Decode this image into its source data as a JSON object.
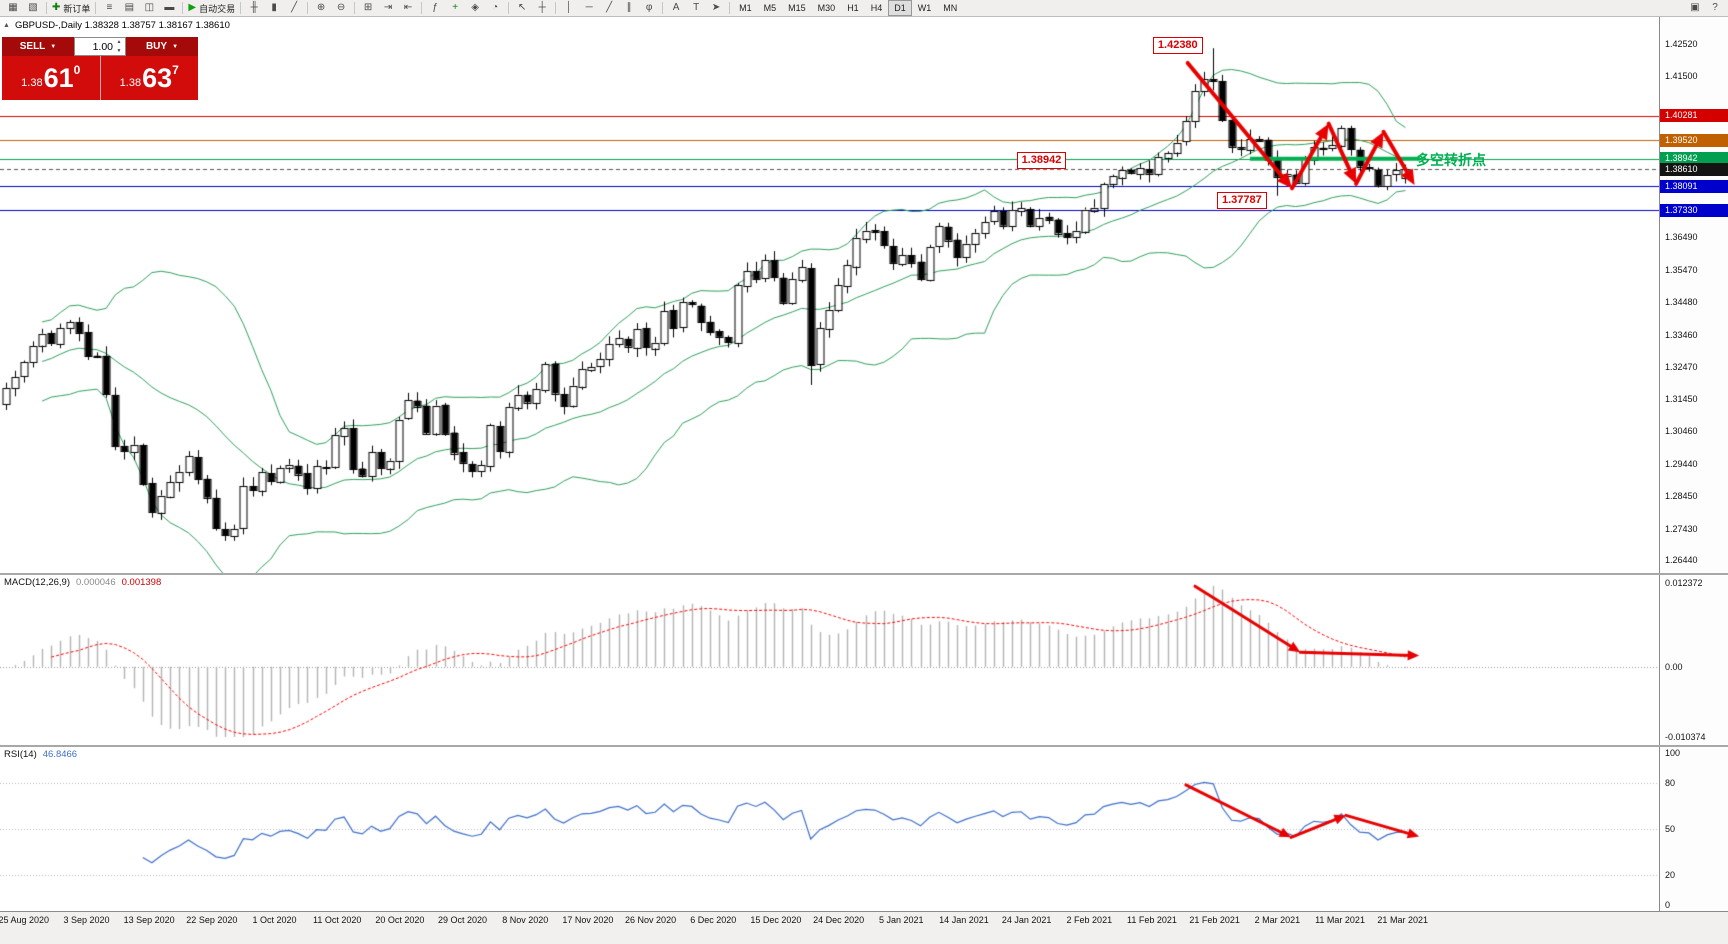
{
  "toolbar": {
    "groups": [
      {
        "items": [
          {
            "name": "new-chart-icon",
            "glyph": "▦"
          },
          {
            "name": "chart-profiles-icon",
            "glyph": "▧"
          }
        ]
      },
      {
        "items": [
          {
            "name": "new-order-button",
            "glyph": "✚",
            "glyph_color": "#118011",
            "label": "新订单"
          }
        ]
      },
      {
        "items": [
          {
            "name": "market-watch-icon",
            "glyph": "≡"
          },
          {
            "name": "data-window-icon",
            "glyph": "▤"
          },
          {
            "name": "navigator-icon",
            "glyph": "◫"
          },
          {
            "name": "terminal-icon",
            "glyph": "▬"
          }
        ]
      },
      {
        "items": [
          {
            "name": "autotrading-button",
            "glyph": "▶",
            "glyph_color": "#12A012",
            "label": "自动交易"
          }
        ]
      },
      {
        "items": [
          {
            "name": "bar-chart-icon",
            "glyph": "╫"
          },
          {
            "name": "candlestick-chart-icon",
            "glyph": "▮"
          },
          {
            "name": "line-chart-icon",
            "glyph": "╱"
          }
        ]
      },
      {
        "items": [
          {
            "name": "zoom-in-icon",
            "glyph": "⊕"
          },
          {
            "name": "zoom-out-icon",
            "glyph": "⊖"
          }
        ]
      },
      {
        "items": [
          {
            "name": "tile-windows-icon",
            "glyph": "⊞"
          },
          {
            "name": "auto-scroll-icon",
            "glyph": "⇥"
          },
          {
            "name": "chart-shift-icon",
            "glyph": "⇤"
          }
        ]
      },
      {
        "items": [
          {
            "name": "indicators-icon",
            "glyph": "ƒ"
          },
          {
            "name": "add-indicator-icon",
            "glyph": "+",
            "glyph_color": "#118011"
          },
          {
            "name": "templates-icon",
            "glyph": "◈"
          },
          {
            "name": "periods-icon",
            "glyph": "◔"
          }
        ]
      },
      {
        "items": [
          {
            "name": "cursor-icon",
            "glyph": "↖"
          },
          {
            "name": "crosshair-icon",
            "glyph": "┼"
          }
        ]
      },
      {
        "items": [
          {
            "name": "vertical-line-icon",
            "glyph": "│"
          },
          {
            "name": "horizontal-line-icon",
            "glyph": "─"
          },
          {
            "name": "trendline-icon",
            "glyph": "╱"
          },
          {
            "name": "equidistant-channel-icon",
            "glyph": "∥"
          },
          {
            "name": "fibonacci-icon",
            "glyph": "φ"
          }
        ]
      },
      {
        "items": [
          {
            "name": "text-icon",
            "glyph": "A"
          },
          {
            "name": "text-label-icon",
            "glyph": "T"
          },
          {
            "name": "arrow-objects-icon",
            "glyph": "➤"
          }
        ]
      }
    ],
    "timeframes": [
      {
        "label": "M1"
      },
      {
        "label": "M5"
      },
      {
        "label": "M15"
      },
      {
        "label": "M30"
      },
      {
        "label": "H1"
      },
      {
        "label": "H4"
      },
      {
        "label": "D1",
        "active": true
      },
      {
        "label": "W1"
      },
      {
        "label": "MN"
      }
    ],
    "right_icons": [
      {
        "name": "chart-window-icon",
        "glyph": "▣"
      },
      {
        "name": "help-icon",
        "glyph": "?"
      }
    ]
  },
  "trade_widget": {
    "sell_label": "SELL",
    "buy_label": "BUY",
    "volume": "1.00",
    "sell_price_small": "1.38",
    "sell_price_big": "61",
    "sell_price_sup": "0",
    "buy_price_small": "1.38",
    "buy_price_big": "63",
    "buy_price_sup": "7"
  },
  "chart_data": {
    "type": "candlestick",
    "symbol": "GBPUSD-",
    "timeframe": "Daily",
    "info_line": "GBPUSD-,Daily  1.38328 1.38757 1.38167 1.38610",
    "current": {
      "open": "1.38328",
      "high": "1.38757",
      "low": "1.38167",
      "close": "1.38610"
    },
    "closes": [
      1.318,
      1.3215,
      1.326,
      1.331,
      1.335,
      1.332,
      1.3367,
      1.3385,
      1.3352,
      1.328,
      1.3279,
      1.3162,
      1.3,
      1.2984,
      1.3004,
      1.2882,
      1.2795,
      1.2846,
      1.2888,
      1.292,
      1.2968,
      1.2896,
      1.284,
      1.2745,
      1.2722,
      1.2742,
      1.2876,
      1.2862,
      1.292,
      1.289,
      1.2932,
      1.2942,
      1.2912,
      1.2868,
      1.2938,
      1.2932,
      1.3034,
      1.3056,
      1.2928,
      1.2908,
      1.298,
      1.2932,
      1.2955,
      1.3082,
      1.3142,
      1.3124,
      1.304,
      1.3126,
      1.3038,
      1.2978,
      1.2948,
      1.2922,
      1.294,
      1.3064,
      1.2984,
      1.3122,
      1.316,
      1.3136,
      1.3178,
      1.3254,
      1.3164,
      1.3124,
      1.3188,
      1.324,
      1.3246,
      1.327,
      1.3318,
      1.3336,
      1.331,
      1.3364,
      1.3308,
      1.3322,
      1.342,
      1.3366,
      1.3448,
      1.344,
      1.3386,
      1.3354,
      1.334,
      1.3322,
      1.35,
      1.3544,
      1.352,
      1.3578,
      1.3524,
      1.3446,
      1.352,
      1.3556,
      1.3252,
      1.3366,
      1.3424,
      1.35,
      1.3562,
      1.3648,
      1.367,
      1.3664,
      1.3624,
      1.357,
      1.3594,
      1.357,
      1.352,
      1.3618,
      1.3684,
      1.364,
      1.3588,
      1.363,
      1.3664,
      1.3696,
      1.373,
      1.3686,
      1.3734,
      1.374,
      1.3686,
      1.371,
      1.3704,
      1.3662,
      1.365,
      1.367,
      1.3736,
      1.3742,
      1.3814,
      1.384,
      1.386,
      1.385,
      1.3866,
      1.3848,
      1.39,
      1.3912,
      1.3944,
      1.401,
      1.4105,
      1.4142,
      1.4136,
      1.4014,
      1.3932,
      1.3925,
      1.3956,
      1.395,
      1.389,
      1.3838,
      1.3846,
      1.382,
      1.3892,
      1.393,
      1.3924,
      1.3936,
      1.399,
      1.3924,
      1.387,
      1.3864,
      1.381,
      1.3842,
      1.3858,
      1.3861
    ],
    "wick_seed": 11,
    "overrides": {
      "24": {
        "low": 1.2705
      },
      "88": {
        "low": 1.319
      },
      "132": {
        "high": 1.4238
      },
      "139": {
        "low": 1.37787
      },
      "153": {
        "open": 1.38328,
        "high": 1.38757,
        "low": 1.38167,
        "close": 1.3861
      }
    },
    "price_axis": {
      "top": 1.4335,
      "bottom": 1.2605,
      "plain_ticks": [
        "1.42520",
        "1.41500",
        "1.36490",
        "1.35470",
        "1.34480",
        "1.33460",
        "1.32470",
        "1.31450",
        "1.30460",
        "1.29440",
        "1.28450",
        "1.27430",
        "1.26440"
      ]
    },
    "levels": [
      {
        "price": 1.40281,
        "text": "1.40281",
        "color": "#D40000"
      },
      {
        "price": 1.3952,
        "text": "1.39520",
        "color": "#C06000"
      },
      {
        "price": 1.38942,
        "text": "1.38942",
        "color": "#00A050"
      },
      {
        "price": 1.38091,
        "text": "1.38091",
        "color": "#0000CC"
      },
      {
        "price": 1.3733,
        "text": "1.37330",
        "color": "#0000CC"
      }
    ],
    "bid": {
      "price": 1.3861,
      "text": "1.38610",
      "tag_bg": "#141414",
      "line_color": "#555555"
    },
    "bollinger": {
      "period": 20,
      "deviation": 2,
      "color": "#2E9E5B"
    },
    "candles": {
      "up_fill": "#FFFFFF",
      "down_fill": "#000000",
      "outline": "#000000"
    },
    "support_segment": {
      "price": 1.38942,
      "from_candle": 136,
      "to_candle": 154.6,
      "color": "#00B050",
      "width": 4
    },
    "annotations": {
      "high_callout": {
        "text": "1.42380",
        "candle": 125.4,
        "price": 1.4272
      },
      "level_callout": {
        "text": "1.38942",
        "candle": 110.5,
        "price": 1.3916
      },
      "low_callout": {
        "text": "1.37787",
        "candle": 132.4,
        "price": 1.379
      },
      "note": {
        "text": "多空转折点",
        "x_frac": 0.853,
        "price": 1.38942,
        "color": "#00B050"
      }
    },
    "arrows": {
      "color": "#E80000",
      "main": [
        [
          129.2,
          1.4192,
          140.6,
          1.3802
        ],
        [
          140.6,
          1.3802,
          144.6,
          1.4003
        ],
        [
          144.6,
          1.4003,
          147.6,
          1.3816
        ],
        [
          147.6,
          1.3816,
          150.6,
          1.3978
        ],
        [
          150.6,
          1.3978,
          154.0,
          1.3812
        ]
      ],
      "macd": [
        [
          130,
          0.0119,
          141.5,
          0.00215
        ],
        [
          141.5,
          0.00215,
          154.5,
          0.00165
        ]
      ],
      "rsi": [
        [
          129,
          79,
          140.5,
          44.5
        ],
        [
          140.5,
          44.5,
          146.5,
          59
        ],
        [
          146.5,
          59,
          154.5,
          45
        ]
      ]
    },
    "macd": {
      "label": "MACD(12,26,9)",
      "value_main": "0.000046",
      "value_signal": "0.001398",
      "scale_top_text": "0.012372",
      "scale_mid_text": "0.00",
      "scale_bottom_text": "-0.010374",
      "scale_top": 0.012372,
      "scale_bottom": -0.010374,
      "hist_color": "#B4B4B4",
      "signal_color": "#FF0000"
    },
    "rsi": {
      "label": "RSI(14)",
      "value": "46.8466",
      "period": 14,
      "color": "#3E6FC8",
      "levels": [
        80,
        50,
        20
      ],
      "scale_labels": [
        {
          "value": 100,
          "text": "100"
        },
        {
          "value": 80,
          "text": "80"
        },
        {
          "value": 50,
          "text": "50"
        },
        {
          "value": 20,
          "text": "20"
        },
        {
          "value": 0,
          "text": "0"
        }
      ]
    },
    "time_labels": [
      "25 Aug 2020",
      "3 Sep 2020",
      "13 Sep 2020",
      "22 Sep 2020",
      "1 Oct 2020",
      "11 Oct 2020",
      "20 Oct 2020",
      "29 Oct 2020",
      "8 Nov 2020",
      "17 Nov 2020",
      "26 Nov 2020",
      "6 Dec 2020",
      "15 Dec 2020",
      "24 Dec 2020",
      "5 Jan 2021",
      "14 Jan 2021",
      "24 Jan 2021",
      "2 Feb 2021",
      "11 Feb 2021",
      "21 Feb 2021",
      "2 Mar 2021",
      "11 Mar 2021",
      "21 Mar 2021"
    ],
    "label_first_candle": 2,
    "label_step_candles": 6.85
  }
}
